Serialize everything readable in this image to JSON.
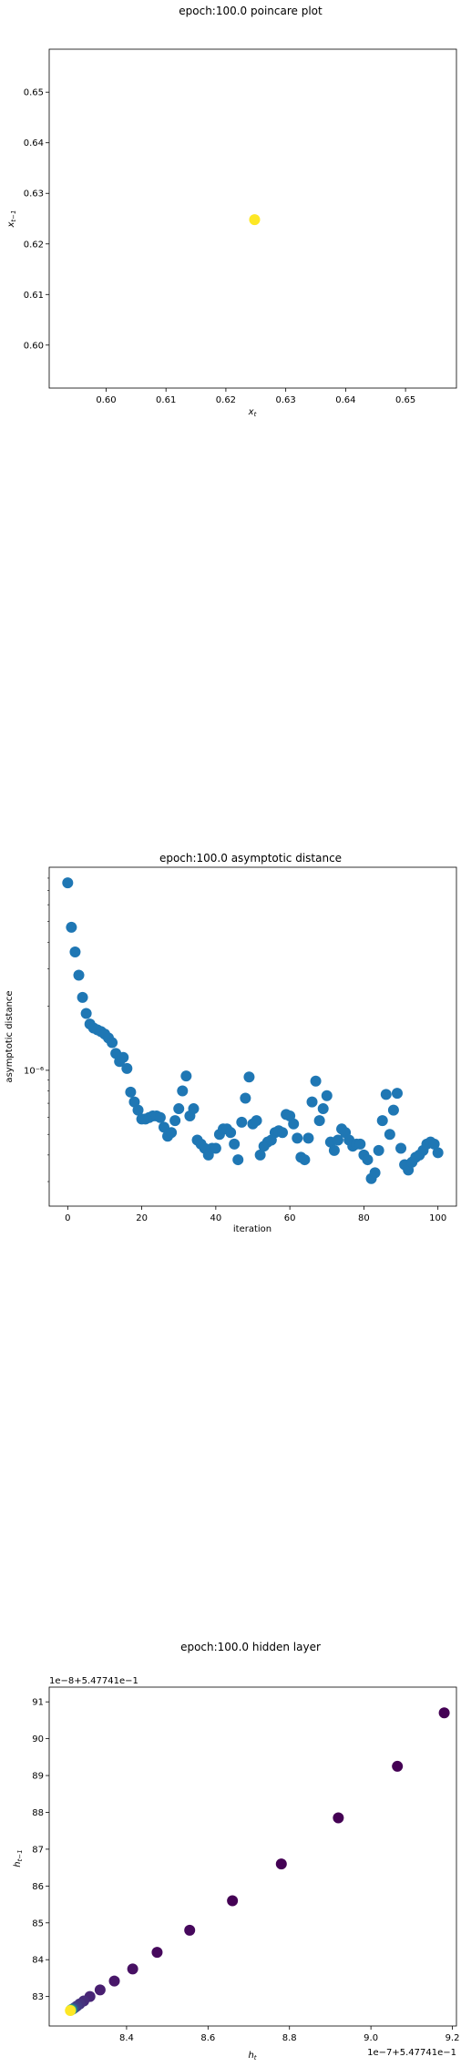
{
  "chart_data": [
    {
      "type": "scatter",
      "title": "epoch:100.0 poincare plot",
      "xlabel": "x_t",
      "ylabel": "x_{t-1}",
      "xlim": [
        0.5905,
        0.6585
      ],
      "ylim": [
        0.5915,
        0.6585
      ],
      "x_ticks": [
        0.6,
        0.61,
        0.62,
        0.63,
        0.64,
        0.65
      ],
      "x_tick_labels": [
        "0.60",
        "0.61",
        "0.62",
        "0.63",
        "0.64",
        "0.65"
      ],
      "y_ticks": [
        0.6,
        0.61,
        0.62,
        0.63,
        0.64,
        0.65
      ],
      "y_tick_labels": [
        "0.60",
        "0.61",
        "0.62",
        "0.63",
        "0.64",
        "0.65"
      ],
      "points": [
        {
          "x": 0.6248,
          "y": 0.6248,
          "color": "#fde725"
        }
      ]
    },
    {
      "type": "scatter",
      "title": "epoch:100.0 asymptotic distance",
      "xlabel": "iteration",
      "ylabel": "asymptotic distance",
      "y_scale": "log",
      "xlim": [
        -5,
        105
      ],
      "ylim": [
        2.3e-07,
        9e-06
      ],
      "x_ticks": [
        0,
        20,
        40,
        60,
        80,
        100
      ],
      "x_tick_labels": [
        "0",
        "20",
        "40",
        "60",
        "80",
        "100"
      ],
      "y_ticks": [
        1e-06
      ],
      "y_tick_labels": [
        "10⁻⁶"
      ],
      "y_minor_ticks": [
        3e-07,
        4e-07,
        5e-07,
        6e-07,
        7e-07,
        8e-07,
        9e-07,
        2e-06,
        3e-06,
        4e-06,
        5e-06,
        6e-06,
        7e-06,
        8e-06
      ],
      "color": "#1f77b4",
      "x": [
        0,
        1,
        2,
        3,
        4,
        5,
        6,
        7,
        8,
        9,
        10,
        11,
        12,
        13,
        14,
        15,
        16,
        17,
        18,
        19,
        20,
        21,
        22,
        23,
        24,
        25,
        26,
        27,
        28,
        29,
        30,
        31,
        32,
        33,
        34,
        35,
        36,
        37,
        38,
        39,
        40,
        41,
        42,
        43,
        44,
        45,
        46,
        47,
        48,
        49,
        50,
        51,
        52,
        53,
        54,
        55,
        56,
        57,
        58,
        59,
        60,
        61,
        62,
        63,
        64,
        65,
        66,
        67,
        68,
        69,
        70,
        71,
        72,
        73,
        74,
        75,
        76,
        77,
        78,
        79,
        80,
        81,
        82,
        83,
        84,
        85,
        86,
        87,
        88,
        89,
        90,
        91,
        92,
        93,
        94,
        95,
        96,
        97,
        98,
        99,
        100
      ],
      "y": [
        7.6e-06,
        4.7e-06,
        3.6e-06,
        2.8e-06,
        2.2e-06,
        1.85e-06,
        1.65e-06,
        1.58e-06,
        1.55e-06,
        1.52e-06,
        1.48e-06,
        1.42e-06,
        1.35e-06,
        1.2e-06,
        1.1e-06,
        1.15e-06,
        1.02e-06,
        7.9e-07,
        7.1e-07,
        6.5e-07,
        5.9e-07,
        5.9e-07,
        6e-07,
        6.1e-07,
        6.1e-07,
        6e-07,
        5.4e-07,
        4.9e-07,
        5.1e-07,
        5.8e-07,
        6.6e-07,
        8e-07,
        9.4e-07,
        6.1e-07,
        6.6e-07,
        4.7e-07,
        4.5e-07,
        4.3e-07,
        4e-07,
        4.3e-07,
        4.3e-07,
        5e-07,
        5.3e-07,
        5.3e-07,
        5.1e-07,
        4.5e-07,
        3.8e-07,
        5.7e-07,
        7.4e-07,
        9.3e-07,
        5.6e-07,
        5.8e-07,
        4e-07,
        4.4e-07,
        4.6e-07,
        4.7e-07,
        5.1e-07,
        5.2e-07,
        5.1e-07,
        6.2e-07,
        6.1e-07,
        5.6e-07,
        4.8e-07,
        3.9e-07,
        3.8e-07,
        4.8e-07,
        7.1e-07,
        8.9e-07,
        5.8e-07,
        6.6e-07,
        7.6e-07,
        4.6e-07,
        4.2e-07,
        4.7e-07,
        5.3e-07,
        5.1e-07,
        4.7e-07,
        4.4e-07,
        4.5e-07,
        4.5e-07,
        4e-07,
        3.8e-07,
        3.1e-07,
        3.3e-07,
        4.2e-07,
        5.8e-07,
        7.7e-07,
        5e-07,
        6.5e-07,
        7.8e-07,
        4.3e-07,
        3.6e-07,
        3.4e-07,
        3.7e-07,
        3.9e-07,
        4e-07,
        4.2e-07,
        4.5e-07,
        4.6e-07,
        4.5e-07,
        4.1e-07
      ]
    },
    {
      "type": "scatter",
      "title": "epoch:100.0 hidden layer",
      "xlabel": "h_t",
      "ylabel": "h_{t-1}",
      "x_offset_text": "1e−7+5.47741e−1",
      "y_offset_text": "1e−8+5.47741e−1",
      "xlim": [
        8.21,
        9.21
      ],
      "ylim": [
        82.2,
        91.4
      ],
      "x_ticks": [
        8.4,
        8.6,
        8.8,
        9.0,
        9.2
      ],
      "x_tick_labels": [
        "8.4",
        "8.6",
        "8.8",
        "9.0",
        "9.2"
      ],
      "y_ticks": [
        83,
        84,
        85,
        86,
        87,
        88,
        89,
        90,
        91
      ],
      "y_tick_labels": [
        "83",
        "84",
        "85",
        "86",
        "87",
        "88",
        "89",
        "90",
        "91"
      ],
      "colormap": "viridis",
      "points": [
        {
          "x": 9.18,
          "y": 90.7,
          "color": "#440154"
        },
        {
          "x": 9.065,
          "y": 89.25,
          "color": "#440154"
        },
        {
          "x": 8.92,
          "y": 87.85,
          "color": "#440154"
        },
        {
          "x": 8.78,
          "y": 86.6,
          "color": "#440154"
        },
        {
          "x": 8.66,
          "y": 85.6,
          "color": "#440154"
        },
        {
          "x": 8.555,
          "y": 84.8,
          "color": "#46085c"
        },
        {
          "x": 8.475,
          "y": 84.2,
          "color": "#46085c"
        },
        {
          "x": 8.415,
          "y": 83.75,
          "color": "#471063"
        },
        {
          "x": 8.37,
          "y": 83.42,
          "color": "#481769"
        },
        {
          "x": 8.335,
          "y": 83.18,
          "color": "#481e70"
        },
        {
          "x": 8.31,
          "y": 83.0,
          "color": "#482576"
        },
        {
          "x": 8.295,
          "y": 82.88,
          "color": "#472c7a"
        },
        {
          "x": 8.285,
          "y": 82.8,
          "color": "#46337e"
        },
        {
          "x": 8.278,
          "y": 82.74,
          "color": "#443a83"
        },
        {
          "x": 8.273,
          "y": 82.7,
          "color": "#424086"
        },
        {
          "x": 8.269,
          "y": 82.67,
          "color": "#3b528b"
        },
        {
          "x": 8.266,
          "y": 82.65,
          "color": "#2c728e"
        },
        {
          "x": 8.264,
          "y": 82.64,
          "color": "#21918c"
        },
        {
          "x": 8.263,
          "y": 82.63,
          "color": "#5ec962"
        },
        {
          "x": 8.262,
          "y": 82.62,
          "color": "#fde725"
        }
      ]
    }
  ]
}
